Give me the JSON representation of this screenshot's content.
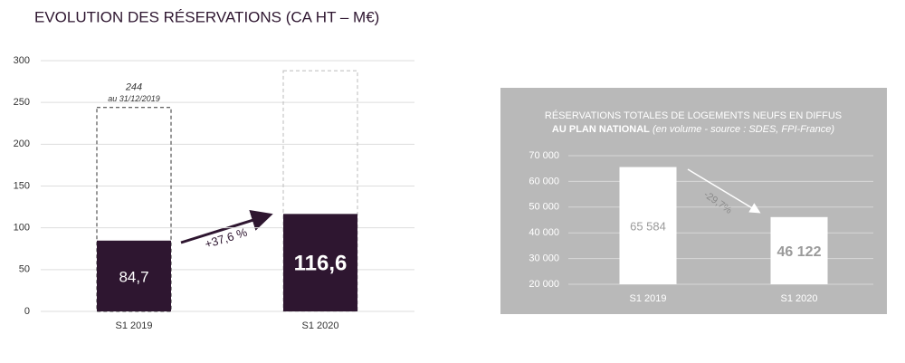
{
  "title": "EVOLUTION DES RÉSERVATIONS (CA HT – M€)",
  "chart_data": [
    {
      "type": "bar",
      "categories": [
        "S1 2019",
        "S1 2020"
      ],
      "values": [
        84.7,
        116.6
      ],
      "value_labels": [
        "84,7",
        "116,6"
      ],
      "color": "#2e1630",
      "outline_values": [
        244,
        288
      ],
      "outline_value_labels": [
        "244",
        null
      ],
      "outline_note": "au 31/12/2019",
      "annotation": "+37,6 %",
      "ylim": [
        0,
        300
      ],
      "yticks": [
        0,
        50,
        100,
        150,
        200,
        250,
        300
      ],
      "grid": true
    },
    {
      "type": "bar",
      "title": "RÉSERVATIONS TOTALES DE LOGEMENTS NEUFS EN DIFFUS",
      "title_2": "AU PLAN NATIONAL",
      "subtitle": "(en volume - source : SDES, FPI-France)",
      "background": "#b9b9b9",
      "categories": [
        "S1 2019",
        "S1 2020"
      ],
      "values": [
        65584,
        46122
      ],
      "value_labels": [
        "65 584",
        "46 122"
      ],
      "color": "#ffffff",
      "annotation": "-29,7%",
      "ylim": [
        20000,
        70000
      ],
      "yticks": [
        {
          "value": 20000,
          "label": "20 000"
        },
        {
          "value": 30000,
          "label": "30 000"
        },
        {
          "value": 40000,
          "label": "40 000"
        },
        {
          "value": 50000,
          "label": "50 000"
        },
        {
          "value": 60000,
          "label": "60 000"
        },
        {
          "value": 70000,
          "label": "70 000"
        }
      ],
      "grid": true
    }
  ]
}
